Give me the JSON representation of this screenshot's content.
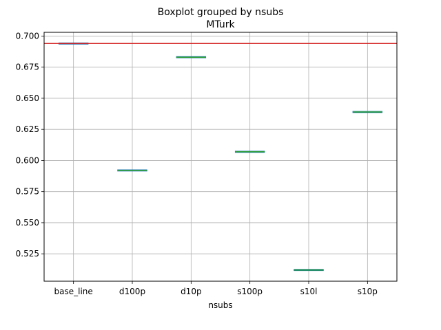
{
  "chart_data": {
    "type": "box",
    "title": "Boxplot grouped by nsubs",
    "subtitle": "MTurk",
    "xlabel": "nsubs",
    "ylabel": "",
    "categories": [
      "base_line",
      "d100p",
      "d10p",
      "s100p",
      "s10l",
      "s10p"
    ],
    "values": [
      0.694,
      0.592,
      0.683,
      0.607,
      0.512,
      0.639
    ],
    "ylim": [
      0.503,
      0.703
    ],
    "yticks": [
      0.525,
      0.55,
      0.575,
      0.6,
      0.625,
      0.65,
      0.675,
      0.7
    ],
    "ytick_labels": [
      "0.525",
      "0.550",
      "0.575",
      "0.600",
      "0.625",
      "0.650",
      "0.675",
      "0.700"
    ],
    "reference_line": {
      "value": 0.694,
      "color": "#d62728"
    },
    "grid": true,
    "box_color": "#2ca02c"
  }
}
